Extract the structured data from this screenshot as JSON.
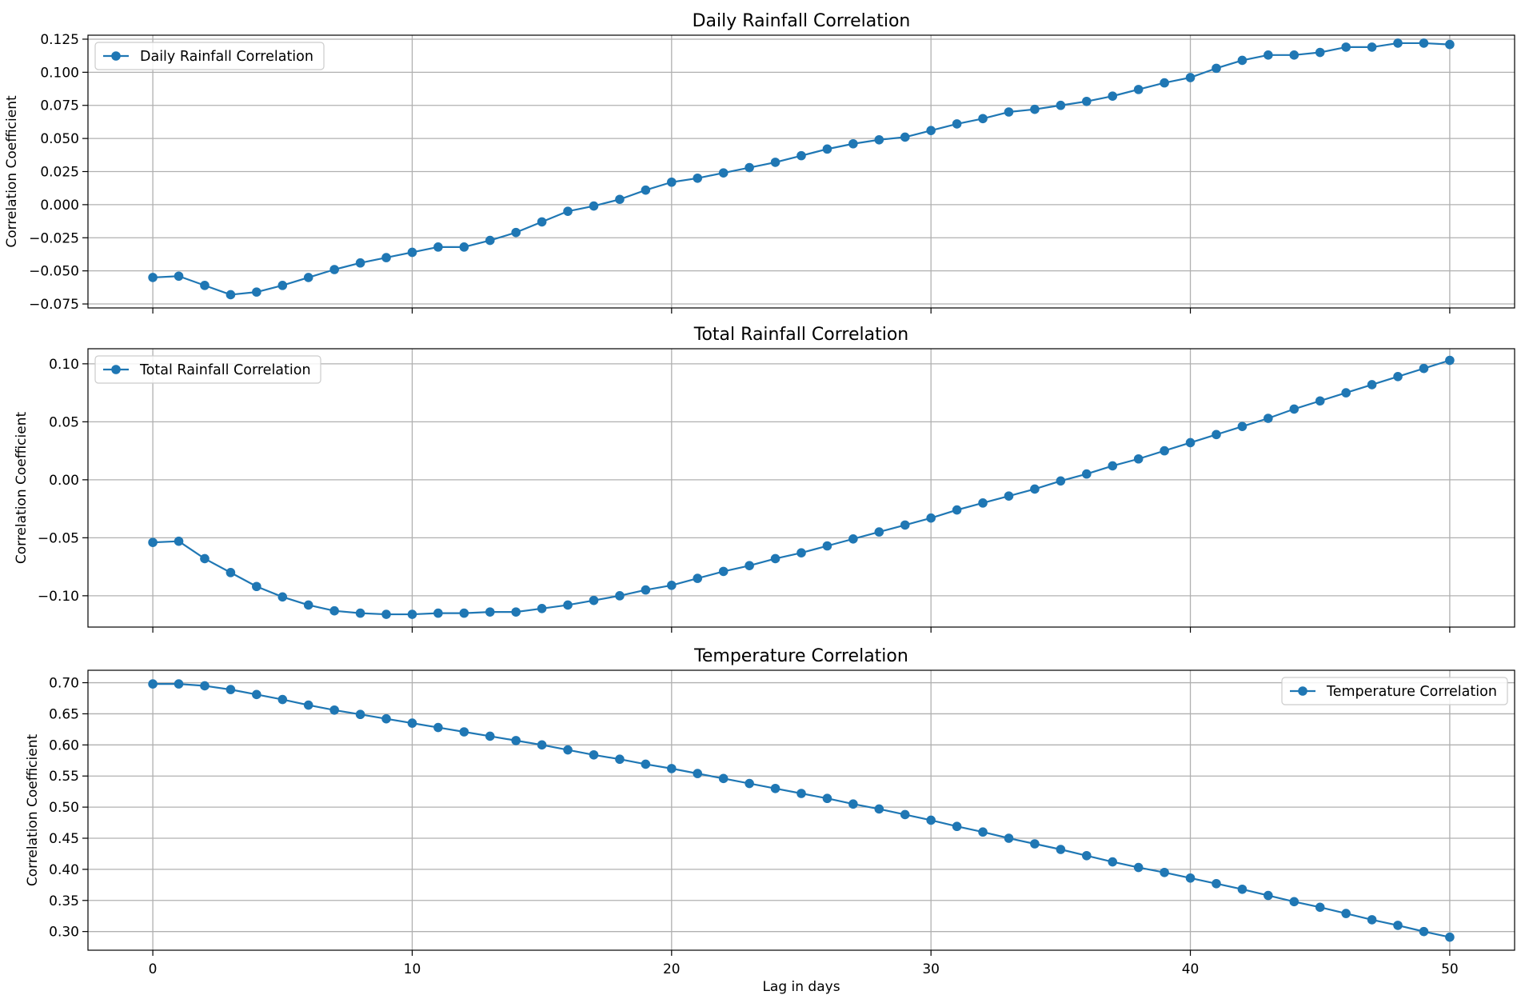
{
  "style": {
    "line_color": "#1f77b4",
    "grid_color": "#b0b0b0",
    "axis_color": "#000000",
    "legend_border": "#cccccc"
  },
  "shared": {
    "xlabel": "Lag in days",
    "xlim": [
      -2.5,
      52.5
    ],
    "xticks": [
      0,
      10,
      20,
      30,
      40,
      50
    ],
    "xtick_labels": [
      "0",
      "10",
      "20",
      "30",
      "40",
      "50"
    ]
  },
  "chart_data": [
    {
      "type": "line",
      "title": "Daily Rainfall Correlation",
      "ylabel": "Correlation Coefficient",
      "xlabel": "",
      "show_xtick_labels": false,
      "ylim": [
        -0.078,
        0.128
      ],
      "yticks": [
        -0.075,
        -0.05,
        -0.025,
        0.0,
        0.025,
        0.05,
        0.075,
        0.1,
        0.125
      ],
      "ytick_labels": [
        "−0.075",
        "−0.050",
        "−0.025",
        "0.000",
        "0.025",
        "0.050",
        "0.075",
        "0.100",
        "0.125"
      ],
      "grid": true,
      "legend_position": "upper-left",
      "series": [
        {
          "name": "Daily Rainfall Correlation",
          "x": [
            0,
            1,
            2,
            3,
            4,
            5,
            6,
            7,
            8,
            9,
            10,
            11,
            12,
            13,
            14,
            15,
            16,
            17,
            18,
            19,
            20,
            21,
            22,
            23,
            24,
            25,
            26,
            27,
            28,
            29,
            30,
            31,
            32,
            33,
            34,
            35,
            36,
            37,
            38,
            39,
            40,
            41,
            42,
            43,
            44,
            45,
            46,
            47,
            48,
            49,
            50
          ],
          "y": [
            -0.055,
            -0.054,
            -0.061,
            -0.068,
            -0.066,
            -0.061,
            -0.055,
            -0.049,
            -0.044,
            -0.04,
            -0.036,
            -0.032,
            -0.032,
            -0.027,
            -0.021,
            -0.013,
            -0.005,
            -0.001,
            0.004,
            0.011,
            0.017,
            0.02,
            0.024,
            0.028,
            0.032,
            0.037,
            0.042,
            0.046,
            0.049,
            0.051,
            0.056,
            0.061,
            0.065,
            0.07,
            0.072,
            0.075,
            0.078,
            0.082,
            0.087,
            0.092,
            0.096,
            0.103,
            0.109,
            0.113,
            0.113,
            0.115,
            0.119,
            0.119,
            0.122,
            0.122,
            0.121
          ]
        }
      ]
    },
    {
      "type": "line",
      "title": "Total Rainfall Correlation",
      "ylabel": "Correlation Coefficient",
      "xlabel": "",
      "show_xtick_labels": false,
      "ylim": [
        -0.127,
        0.113
      ],
      "yticks": [
        -0.1,
        -0.05,
        0.0,
        0.05,
        0.1
      ],
      "ytick_labels": [
        "−0.10",
        "−0.05",
        "0.00",
        "0.05",
        "0.10"
      ],
      "grid": true,
      "legend_position": "upper-left",
      "series": [
        {
          "name": "Total Rainfall Correlation",
          "x": [
            0,
            1,
            2,
            3,
            4,
            5,
            6,
            7,
            8,
            9,
            10,
            11,
            12,
            13,
            14,
            15,
            16,
            17,
            18,
            19,
            20,
            21,
            22,
            23,
            24,
            25,
            26,
            27,
            28,
            29,
            30,
            31,
            32,
            33,
            34,
            35,
            36,
            37,
            38,
            39,
            40,
            41,
            42,
            43,
            44,
            45,
            46,
            47,
            48,
            49,
            50
          ],
          "y": [
            -0.054,
            -0.053,
            -0.068,
            -0.08,
            -0.092,
            -0.101,
            -0.108,
            -0.113,
            -0.115,
            -0.116,
            -0.116,
            -0.115,
            -0.115,
            -0.114,
            -0.114,
            -0.111,
            -0.108,
            -0.104,
            -0.1,
            -0.095,
            -0.091,
            -0.085,
            -0.079,
            -0.074,
            -0.068,
            -0.063,
            -0.057,
            -0.051,
            -0.045,
            -0.039,
            -0.033,
            -0.026,
            -0.02,
            -0.014,
            -0.008,
            -0.001,
            0.005,
            0.012,
            0.018,
            0.025,
            0.032,
            0.039,
            0.046,
            0.053,
            0.061,
            0.068,
            0.075,
            0.082,
            0.089,
            0.096,
            0.103
          ]
        }
      ]
    },
    {
      "type": "line",
      "title": "Temperature Correlation",
      "ylabel": "Correlation Coefficient",
      "xlabel": "Lag in days",
      "show_xtick_labels": true,
      "ylim": [
        0.27,
        0.72
      ],
      "yticks": [
        0.3,
        0.35,
        0.4,
        0.45,
        0.5,
        0.55,
        0.6,
        0.65,
        0.7
      ],
      "ytick_labels": [
        "0.30",
        "0.35",
        "0.40",
        "0.45",
        "0.50",
        "0.55",
        "0.60",
        "0.65",
        "0.70"
      ],
      "grid": true,
      "legend_position": "upper-right",
      "series": [
        {
          "name": "Temperature Correlation",
          "x": [
            0,
            1,
            2,
            3,
            4,
            5,
            6,
            7,
            8,
            9,
            10,
            11,
            12,
            13,
            14,
            15,
            16,
            17,
            18,
            19,
            20,
            21,
            22,
            23,
            24,
            25,
            26,
            27,
            28,
            29,
            30,
            31,
            32,
            33,
            34,
            35,
            36,
            37,
            38,
            39,
            40,
            41,
            42,
            43,
            44,
            45,
            46,
            47,
            48,
            49,
            50
          ],
          "y": [
            0.698,
            0.698,
            0.695,
            0.689,
            0.681,
            0.673,
            0.664,
            0.656,
            0.649,
            0.642,
            0.635,
            0.628,
            0.621,
            0.614,
            0.607,
            0.6,
            0.592,
            0.584,
            0.577,
            0.569,
            0.562,
            0.554,
            0.546,
            0.538,
            0.53,
            0.522,
            0.514,
            0.505,
            0.497,
            0.488,
            0.479,
            0.469,
            0.46,
            0.45,
            0.441,
            0.432,
            0.422,
            0.412,
            0.403,
            0.395,
            0.386,
            0.377,
            0.368,
            0.358,
            0.348,
            0.339,
            0.329,
            0.319,
            0.31,
            0.3,
            0.291
          ]
        }
      ]
    }
  ]
}
